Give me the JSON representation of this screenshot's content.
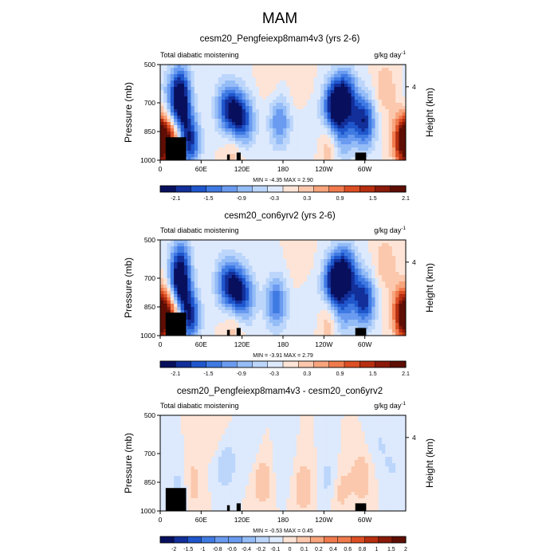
{
  "figure_title": "MAM",
  "colors": {
    "missing": "#000000",
    "frame": "#000000",
    "diverging_palette": [
      "#08105e",
      "#122f9a",
      "#1f56cc",
      "#3f7ae3",
      "#6a9bf0",
      "#94bcf7",
      "#bcd6fb",
      "#dde9fd",
      "#fde4d6",
      "#fbc8ad",
      "#f8a47c",
      "#f07a4d",
      "#dc4f24",
      "#b72f10",
      "#8a1a0a",
      "#5e0e04"
    ]
  },
  "chart_data": [
    {
      "type": "heatmap",
      "title": "cesm20_Pengfeiexp8mam4v3 (yrs 2-6)",
      "left_label": "Total diabatic moistening",
      "right_label": "g/kg day",
      "unit_exponent": "-1",
      "ylabel": "Pressure (mb)",
      "ylabel_right": "Height (km)",
      "yticks": [
        "500",
        "700",
        "850",
        "1000"
      ],
      "ytick_values": [
        500,
        700,
        850,
        1000
      ],
      "yticks_right": [
        "4"
      ],
      "ytick_right_pressure": [
        616
      ],
      "ylim": [
        1000,
        500
      ],
      "xticks": [
        "0",
        "60E",
        "120E",
        "180",
        "120W",
        "60W"
      ],
      "xtick_values": [
        0,
        60,
        120,
        180,
        240,
        300
      ],
      "xlim": [
        0,
        360
      ],
      "stats_text": "MIN = -4.35 MAX = 2.90",
      "min": -4.35,
      "max": 2.9,
      "colorbar_labels": [
        "-2.1",
        "-1.5",
        "-0.9",
        "-0.3",
        "0.3",
        "0.9",
        "1.5",
        "2.1"
      ],
      "colorbar_levels": [
        -2.4,
        -2.1,
        -1.8,
        -1.5,
        -1.2,
        -0.9,
        -0.6,
        -0.3,
        0,
        0.3,
        0.6,
        0.9,
        1.2,
        1.5,
        1.8,
        2.1,
        2.4
      ],
      "features": [
        {
          "kind": "anomaly",
          "lon": 28,
          "p": 730,
          "value": -2.4
        },
        {
          "kind": "anomaly",
          "lon": 30,
          "p": 600,
          "value": -1.2
        },
        {
          "kind": "anomaly",
          "lon": 20,
          "p": 880,
          "value": 1.5
        },
        {
          "kind": "anomaly",
          "lon": 2,
          "p": 930,
          "value": 1.2
        },
        {
          "kind": "anomaly",
          "lon": 42,
          "p": 900,
          "value": -2.1
        },
        {
          "kind": "anomaly",
          "lon": 10,
          "p": 640,
          "value": -0.3
        },
        {
          "kind": "anomaly",
          "lon": 95,
          "p": 720,
          "value": -1.2
        },
        {
          "kind": "anomaly",
          "lon": 110,
          "p": 760,
          "value": -1.8
        },
        {
          "kind": "anomaly",
          "lon": 125,
          "p": 800,
          "value": -1.2
        },
        {
          "kind": "anomaly",
          "lon": 108,
          "p": 930,
          "value": 0.6
        },
        {
          "kind": "anomaly",
          "lon": 175,
          "p": 800,
          "value": -1.2
        },
        {
          "kind": "anomaly",
          "lon": 220,
          "p": 830,
          "value": -0.3
        },
        {
          "kind": "anomaly",
          "lon": 160,
          "p": 560,
          "value": 0.3
        },
        {
          "kind": "anomaly",
          "lon": 255,
          "p": 720,
          "value": -2.4
        },
        {
          "kind": "anomaly",
          "lon": 272,
          "p": 660,
          "value": -1.8
        },
        {
          "kind": "anomaly",
          "lon": 268,
          "p": 880,
          "value": -0.9
        },
        {
          "kind": "anomaly",
          "lon": 300,
          "p": 800,
          "value": -1.8
        },
        {
          "kind": "anomaly",
          "lon": 285,
          "p": 760,
          "value": -0.6
        },
        {
          "kind": "anomaly",
          "lon": 357,
          "p": 880,
          "value": 1.8
        },
        {
          "kind": "anomaly",
          "lon": 330,
          "p": 620,
          "value": 0.6
        },
        {
          "kind": "anomaly",
          "lon": 248,
          "p": 920,
          "value": 0.6
        },
        {
          "kind": "anomaly",
          "lon": 205,
          "p": 600,
          "value": 0.3
        },
        {
          "kind": "terrain",
          "lon": [
            8,
            38
          ],
          "p": [
            880,
            1000
          ]
        },
        {
          "kind": "terrain",
          "lon": [
            98,
            102
          ],
          "p": [
            970,
            1000
          ]
        },
        {
          "kind": "terrain",
          "lon": [
            112,
            118
          ],
          "p": [
            960,
            1000
          ]
        },
        {
          "kind": "terrain",
          "lon": [
            286,
            302
          ],
          "p": [
            960,
            1000
          ]
        }
      ]
    },
    {
      "type": "heatmap",
      "title": "cesm20_con6yrv2 (yrs 2-6)",
      "left_label": "Total diabatic moistening",
      "right_label": "g/kg day",
      "unit_exponent": "-1",
      "ylabel": "Pressure (mb)",
      "ylabel_right": "Height (km)",
      "yticks": [
        "500",
        "700",
        "850",
        "1000"
      ],
      "ytick_values": [
        500,
        700,
        850,
        1000
      ],
      "yticks_right": [
        "4"
      ],
      "ytick_right_pressure": [
        616
      ],
      "ylim": [
        1000,
        500
      ],
      "xticks": [
        "0",
        "60E",
        "120E",
        "180",
        "120W",
        "60W"
      ],
      "xtick_values": [
        0,
        60,
        120,
        180,
        240,
        300
      ],
      "xlim": [
        0,
        360
      ],
      "stats_text": "MIN = -3.91 MAX = 2.79",
      "min": -3.91,
      "max": 2.79,
      "colorbar_labels": [
        "-2.1",
        "-1.5",
        "-0.9",
        "-0.3",
        "0.3",
        "0.9",
        "1.5",
        "2.1"
      ],
      "colorbar_levels": [
        -2.4,
        -2.1,
        -1.8,
        -1.5,
        -1.2,
        -0.9,
        -0.6,
        -0.3,
        0,
        0.3,
        0.6,
        0.9,
        1.2,
        1.5,
        1.8,
        2.1,
        2.4
      ],
      "features": [
        {
          "kind": "anomaly",
          "lon": 28,
          "p": 740,
          "value": -2.4
        },
        {
          "kind": "anomaly",
          "lon": 30,
          "p": 600,
          "value": -1.2
        },
        {
          "kind": "anomaly",
          "lon": 20,
          "p": 880,
          "value": 1.5
        },
        {
          "kind": "anomaly",
          "lon": 2,
          "p": 930,
          "value": 1.2
        },
        {
          "kind": "anomaly",
          "lon": 42,
          "p": 900,
          "value": -2.1
        },
        {
          "kind": "anomaly",
          "lon": 95,
          "p": 720,
          "value": -1.2
        },
        {
          "kind": "anomaly",
          "lon": 110,
          "p": 760,
          "value": -1.8
        },
        {
          "kind": "anomaly",
          "lon": 125,
          "p": 800,
          "value": -1.2
        },
        {
          "kind": "anomaly",
          "lon": 108,
          "p": 930,
          "value": 0.6
        },
        {
          "kind": "anomaly",
          "lon": 170,
          "p": 830,
          "value": -1.5
        },
        {
          "kind": "anomaly",
          "lon": 220,
          "p": 830,
          "value": -0.3
        },
        {
          "kind": "anomaly",
          "lon": 255,
          "p": 720,
          "value": -2.4
        },
        {
          "kind": "anomaly",
          "lon": 272,
          "p": 660,
          "value": -1.8
        },
        {
          "kind": "anomaly",
          "lon": 268,
          "p": 880,
          "value": -0.9
        },
        {
          "kind": "anomaly",
          "lon": 300,
          "p": 820,
          "value": -1.8
        },
        {
          "kind": "anomaly",
          "lon": 285,
          "p": 760,
          "value": -0.6
        },
        {
          "kind": "anomaly",
          "lon": 357,
          "p": 870,
          "value": 1.8
        },
        {
          "kind": "anomaly",
          "lon": 330,
          "p": 620,
          "value": 0.6
        },
        {
          "kind": "anomaly",
          "lon": 248,
          "p": 920,
          "value": 0.6
        },
        {
          "kind": "anomaly",
          "lon": 205,
          "p": 600,
          "value": 0.3
        },
        {
          "kind": "terrain",
          "lon": [
            8,
            38
          ],
          "p": [
            880,
            1000
          ]
        },
        {
          "kind": "terrain",
          "lon": [
            98,
            102
          ],
          "p": [
            970,
            1000
          ]
        },
        {
          "kind": "terrain",
          "lon": [
            112,
            118
          ],
          "p": [
            960,
            1000
          ]
        },
        {
          "kind": "terrain",
          "lon": [
            286,
            302
          ],
          "p": [
            960,
            1000
          ]
        }
      ]
    },
    {
      "type": "heatmap",
      "title": "cesm20_Pengfeiexp8mam4v3 - cesm20_con6yrv2",
      "left_label": "Total diabatic moistening",
      "right_label": "g/kg day",
      "unit_exponent": "-1",
      "ylabel": "Pressure (mb)",
      "ylabel_right": "Height (km)",
      "yticks": [
        "500",
        "700",
        "850",
        "1000"
      ],
      "ytick_values": [
        500,
        700,
        850,
        1000
      ],
      "yticks_right": [
        "4"
      ],
      "ytick_right_pressure": [
        616
      ],
      "ylim": [
        1000,
        500
      ],
      "xticks": [
        "0",
        "60E",
        "120E",
        "180",
        "120W",
        "60W"
      ],
      "xtick_values": [
        0,
        60,
        120,
        180,
        240,
        300
      ],
      "xlim": [
        0,
        360
      ],
      "stats_text": "MIN = -0.53 MAX = 0.45",
      "min": -0.53,
      "max": 0.45,
      "colorbar_labels": [
        "-2",
        "-1.5",
        "-1",
        "-0.8",
        "-0.6",
        "-0.4",
        "-0.2",
        "-0.1",
        "0",
        "0.1",
        "0.2",
        "0.4",
        "0.6",
        "0.8",
        "1",
        "1.5",
        "2"
      ],
      "colorbar_levels": [
        -2.5,
        -2,
        -1.5,
        -1,
        -0.8,
        -0.6,
        -0.4,
        -0.2,
        -0.1,
        0,
        0.1,
        0.2,
        0.4,
        0.6,
        0.8,
        1,
        1.5,
        2,
        2.5
      ],
      "features": [
        {
          "kind": "anomaly",
          "lon": 30,
          "p": 880,
          "value": -0.2
        },
        {
          "kind": "anomaly",
          "lon": 45,
          "p": 860,
          "value": 0.2
        },
        {
          "kind": "anomaly",
          "lon": 95,
          "p": 760,
          "value": -0.2
        },
        {
          "kind": "anomaly",
          "lon": 130,
          "p": 700,
          "value": -0.1
        },
        {
          "kind": "anomaly",
          "lon": 150,
          "p": 840,
          "value": 0.2
        },
        {
          "kind": "anomaly",
          "lon": 180,
          "p": 780,
          "value": -0.1
        },
        {
          "kind": "anomaly",
          "lon": 210,
          "p": 880,
          "value": 0.2
        },
        {
          "kind": "anomaly",
          "lon": 250,
          "p": 840,
          "value": -0.2
        },
        {
          "kind": "anomaly",
          "lon": 262,
          "p": 880,
          "value": 0.2
        },
        {
          "kind": "anomaly",
          "lon": 295,
          "p": 820,
          "value": 0.2
        },
        {
          "kind": "anomaly",
          "lon": 320,
          "p": 640,
          "value": -0.1
        },
        {
          "kind": "anomaly",
          "lon": 340,
          "p": 780,
          "value": -0.1
        },
        {
          "kind": "anomaly",
          "lon": 80,
          "p": 600,
          "value": 0.1
        },
        {
          "kind": "terrain",
          "lon": [
            8,
            38
          ],
          "p": [
            880,
            1000
          ]
        },
        {
          "kind": "terrain",
          "lon": [
            98,
            102
          ],
          "p": [
            970,
            1000
          ]
        },
        {
          "kind": "terrain",
          "lon": [
            112,
            118
          ],
          "p": [
            960,
            1000
          ]
        },
        {
          "kind": "terrain",
          "lon": [
            286,
            302
          ],
          "p": [
            960,
            1000
          ]
        }
      ]
    }
  ]
}
